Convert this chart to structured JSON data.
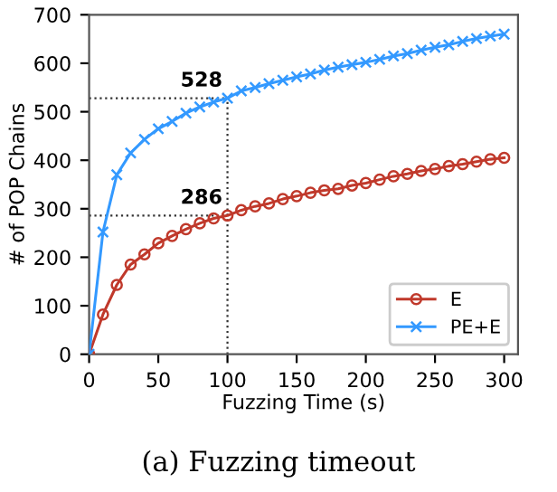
{
  "chart_data": {
    "type": "line",
    "xlabel": "Fuzzing Time (s)",
    "ylabel": "# of POP Chains",
    "x": [
      0,
      10,
      20,
      30,
      40,
      50,
      60,
      70,
      80,
      90,
      100,
      110,
      120,
      130,
      140,
      150,
      160,
      170,
      180,
      190,
      200,
      210,
      220,
      230,
      240,
      250,
      260,
      270,
      280,
      290,
      300
    ],
    "series": [
      {
        "name": "E",
        "color": "#c0392b",
        "marker": "circle",
        "values": [
          0,
          82,
          143,
          185,
          206,
          229,
          244,
          258,
          270,
          280,
          286,
          297,
          305,
          311,
          320,
          326,
          333,
          338,
          341,
          348,
          353,
          360,
          367,
          372,
          378,
          382,
          388,
          392,
          397,
          402,
          405
        ]
      },
      {
        "name": "PE+E",
        "color": "#3399ff",
        "marker": "cross",
        "values": [
          0,
          252,
          370,
          415,
          443,
          465,
          480,
          497,
          510,
          520,
          528,
          543,
          550,
          558,
          565,
          572,
          578,
          586,
          592,
          597,
          602,
          608,
          615,
          620,
          627,
          633,
          638,
          645,
          651,
          656,
          660
        ]
      }
    ],
    "xlim": [
      0,
      310
    ],
    "ylim": [
      0,
      700
    ],
    "xticks": [
      0,
      50,
      100,
      150,
      200,
      250,
      300
    ],
    "yticks": [
      0,
      100,
      200,
      300,
      400,
      500,
      600,
      700
    ],
    "ref_lines": [
      {
        "axis": "x",
        "value": 100,
        "line_style": "dotted"
      },
      {
        "axis": "y",
        "value": 528,
        "line_style": "dotted"
      },
      {
        "axis": "y",
        "value": 286,
        "line_style": "dotted"
      }
    ],
    "annotations": [
      {
        "text": "528",
        "x": 100,
        "y": 528
      },
      {
        "text": "286",
        "x": 100,
        "y": 286
      },
      "(a) Fuzzing timeout"
    ],
    "grid": false,
    "legend": "bottom right",
    "line_style": "solid"
  }
}
